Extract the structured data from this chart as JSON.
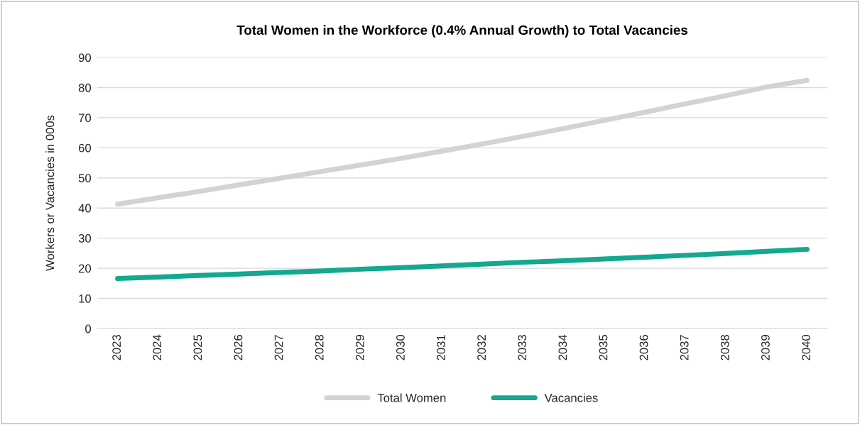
{
  "chart_data": {
    "type": "line",
    "title": "Total Women in the Workforce (0.4% Annual Growth) to Total Vacancies",
    "ylabel": "Workers or Vacancies in 000s",
    "categories": [
      "2023",
      "2024",
      "2025",
      "2026",
      "2027",
      "2028",
      "2029",
      "2030",
      "2031",
      "2032",
      "2033",
      "2034",
      "2035",
      "2036",
      "2037",
      "2038",
      "2039",
      "2040"
    ],
    "series": [
      {
        "name": "Total Women",
        "color": "#d3d3d2",
        "values": [
          41.3,
          43.4,
          45.5,
          47.7,
          49.9,
          52.1,
          54.3,
          56.5,
          58.9,
          61.3,
          63.8,
          66.4,
          69.1,
          71.8,
          74.6,
          77.3,
          80.2,
          82.4
        ]
      },
      {
        "name": "Vacancies",
        "color": "#14a88f",
        "values": [
          16.6,
          17.1,
          17.6,
          18.1,
          18.6,
          19.1,
          19.7,
          20.2,
          20.8,
          21.4,
          22.0,
          22.5,
          23.1,
          23.7,
          24.3,
          24.9,
          25.6,
          26.3
        ]
      }
    ],
    "ylim": [
      0,
      90
    ],
    "yticks": [
      0,
      10,
      20,
      30,
      40,
      50,
      60,
      70,
      80,
      90
    ],
    "grid": "y",
    "legend": "bottom",
    "marker": "none",
    "line_style": "solid"
  }
}
